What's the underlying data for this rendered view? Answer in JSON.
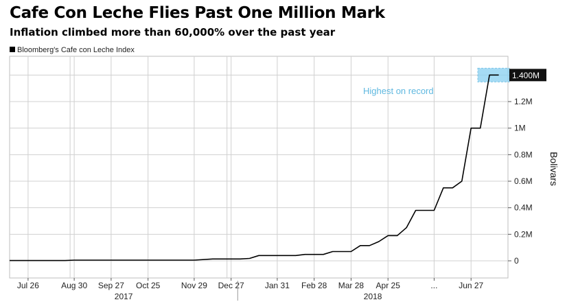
{
  "title": "Cafe Con Leche Flies Past One Million Mark",
  "subtitle": "Inflation climbed more than 60,000% over the past year",
  "legend_label": "Bloomberg's Cafe con Leche Index",
  "colors": {
    "line": "#000000",
    "highlight": "#8fd3f2",
    "annotation": "#5fb8e0",
    "grid": "#d0d0d0"
  },
  "chart_data": {
    "type": "line",
    "title": "Cafe Con Leche Flies Past One Million Mark",
    "subtitle": "Inflation climbed more than 60,000% over the past year",
    "xlabel": "",
    "ylabel": "Bolivars",
    "ylim": [
      0,
      1400000
    ],
    "y_ticks": [
      {
        "value": 0,
        "label": "0"
      },
      {
        "value": 200000,
        "label": "0.2M"
      },
      {
        "value": 400000,
        "label": "0.4M"
      },
      {
        "value": 600000,
        "label": "0.6M"
      },
      {
        "value": 800000,
        "label": "0.8M"
      },
      {
        "value": 1000000,
        "label": "1M"
      },
      {
        "value": 1200000,
        "label": "1.2M"
      }
    ],
    "last_value_label": "1.400M",
    "x_ticks": [
      "Jul 26",
      "Aug 30",
      "Sep 27",
      "Oct 25",
      "Nov 29",
      "Dec 27",
      "Jan 31",
      "Feb 28",
      "Mar 28",
      "Apr 25",
      "...",
      "Jun 27"
    ],
    "year_labels": [
      "2017",
      "2018"
    ],
    "annotation": "Highest on record",
    "grid": true,
    "series": [
      {
        "values": [
          [
            "Jul 12",
            2300
          ],
          [
            "Aug 23",
            2300
          ],
          [
            "Aug 30",
            5000
          ],
          [
            "Nov 29",
            5000
          ],
          [
            "Dec 13",
            14000
          ],
          [
            "Jan 3",
            14000
          ],
          [
            "Jan 10",
            18000
          ],
          [
            "Jan 17",
            40000
          ],
          [
            "Feb 14",
            40000
          ],
          [
            "Feb 21",
            48000
          ],
          [
            "Mar 7",
            48000
          ],
          [
            "Mar 14",
            70000
          ],
          [
            "Mar 28",
            70000
          ],
          [
            "Apr 4",
            115000
          ],
          [
            "Apr 11",
            115000
          ],
          [
            "Apr 18",
            145000
          ],
          [
            "Apr 25",
            190000
          ],
          [
            "May 2",
            190000
          ],
          [
            "May 9",
            250000
          ],
          [
            "May 16",
            380000
          ],
          [
            "May 23",
            380000
          ],
          [
            "May 30",
            380000
          ],
          [
            "Jun 6",
            550000
          ],
          [
            "Jun 13",
            550000
          ],
          [
            "Jun 20",
            600000
          ],
          [
            "Jun 27",
            1000000
          ],
          [
            "Jul 4",
            1000000
          ],
          [
            "Jul 11",
            1400000
          ],
          [
            "Jul 18",
            1400000
          ]
        ]
      }
    ]
  }
}
